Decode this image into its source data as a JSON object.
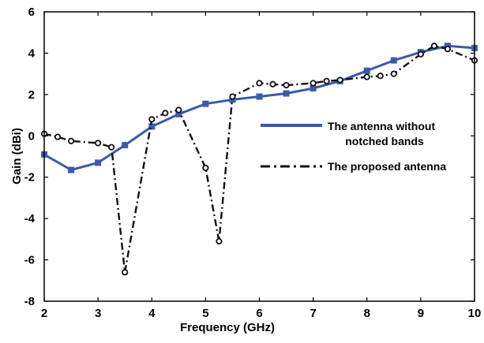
{
  "chart_data": {
    "type": "line",
    "xlabel": "Frequency (GHz)",
    "ylabel": "Gain (dBi)",
    "xlim": [
      2,
      10
    ],
    "ylim": [
      -8,
      6
    ],
    "xticks": [
      "2",
      "3",
      "4",
      "5",
      "6",
      "7",
      "8",
      "9",
      "10"
    ],
    "yticks": [
      "-8",
      "-6",
      "-4",
      "-2",
      "0",
      "2",
      "4",
      "6"
    ],
    "grid": false,
    "legend_position": "right",
    "series": [
      {
        "name": "The antenna without notched bands",
        "legend_lines": [
          "The antenna without",
          "notched bands"
        ],
        "color": "#3a5ba8",
        "style": "solid",
        "marker": "square",
        "x": [
          2,
          2.5,
          3,
          3.5,
          4,
          4.5,
          5,
          5.5,
          6,
          6.5,
          7,
          7.5,
          8,
          8.5,
          9,
          9.5,
          10
        ],
        "y": [
          -0.9,
          -1.65,
          -1.3,
          -0.45,
          0.45,
          1.05,
          1.55,
          1.75,
          1.9,
          2.05,
          2.3,
          2.65,
          3.15,
          3.65,
          4.05,
          4.35,
          4.25
        ]
      },
      {
        "name": "The proposed antenna",
        "legend_lines": [
          "The proposed antenna"
        ],
        "color": "#111111",
        "style": "dashdot",
        "marker": "circle",
        "x": [
          2,
          2.25,
          2.5,
          3,
          3.25,
          3.5,
          4,
          4.25,
          4.5,
          5,
          5.25,
          5.5,
          6,
          6.25,
          6.5,
          7,
          7.25,
          7.5,
          8,
          8.25,
          8.5,
          9,
          9.25,
          9.5,
          10
        ],
        "y": [
          0.1,
          -0.05,
          -0.25,
          -0.35,
          -0.55,
          -6.6,
          0.8,
          1.1,
          1.25,
          -1.55,
          -5.1,
          1.9,
          2.55,
          2.5,
          2.45,
          2.55,
          2.65,
          2.7,
          2.85,
          2.9,
          3.0,
          3.95,
          4.35,
          4.2,
          3.65
        ]
      }
    ]
  }
}
